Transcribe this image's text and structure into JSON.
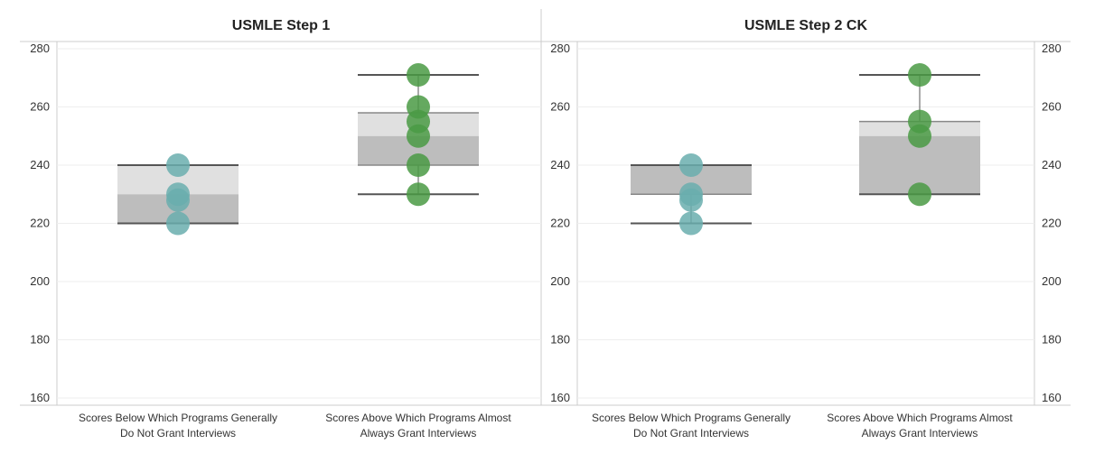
{
  "chart_data": [
    {
      "type": "box",
      "title": "USMLE Step 1",
      "ylim": [
        160,
        280
      ],
      "yticks": [
        160,
        180,
        200,
        220,
        240,
        260,
        280
      ],
      "categories": [
        "Scores Below Which Programs Generally Do Not Grant Interviews",
        "Scores Above Which Programs Almost Always Grant Interviews"
      ],
      "boxes": [
        {
          "whisker_low": 220,
          "q1": 220,
          "median": 230,
          "q3": 240,
          "whisker_high": 240
        },
        {
          "whisker_low": 230,
          "q1": 240,
          "median": 250,
          "q3": 258,
          "whisker_high": 271
        }
      ],
      "points": [
        [
          240,
          230,
          228,
          220
        ],
        [
          271,
          260,
          255,
          250,
          240,
          230
        ]
      ]
    },
    {
      "type": "box",
      "title": "USMLE Step 2 CK",
      "ylim": [
        160,
        280
      ],
      "yticks": [
        160,
        180,
        200,
        220,
        240,
        260,
        280
      ],
      "categories": [
        "Scores Below Which Programs Generally Do Not Grant Interviews",
        "Scores Above Which Programs Almost Always Grant Interviews"
      ],
      "boxes": [
        {
          "whisker_low": 220,
          "q1": 230,
          "median": 240,
          "q3": 240,
          "whisker_high": 240
        },
        {
          "whisker_low": 230,
          "q1": 230,
          "median": 250,
          "q3": 255,
          "whisker_high": 271
        }
      ],
      "points": [
        [
          240,
          230,
          228,
          220
        ],
        [
          271,
          255,
          250,
          230
        ]
      ]
    }
  ],
  "colors": {
    "point_below": "#6aaeae",
    "point_above": "#4a9a44",
    "box_upper": "#e0e0e0",
    "box_lower": "#bdbdbd",
    "whisker": "#555555",
    "grid": "#eeeeee",
    "axis": "#cccccc"
  },
  "labels": {
    "cat1_line1": "Scores Below Which Programs Generally",
    "cat1_line2": "Do Not Grant Interviews",
    "cat2_line1": "Scores Above Which Programs Almost",
    "cat2_line2": "Always Grant Interviews"
  }
}
